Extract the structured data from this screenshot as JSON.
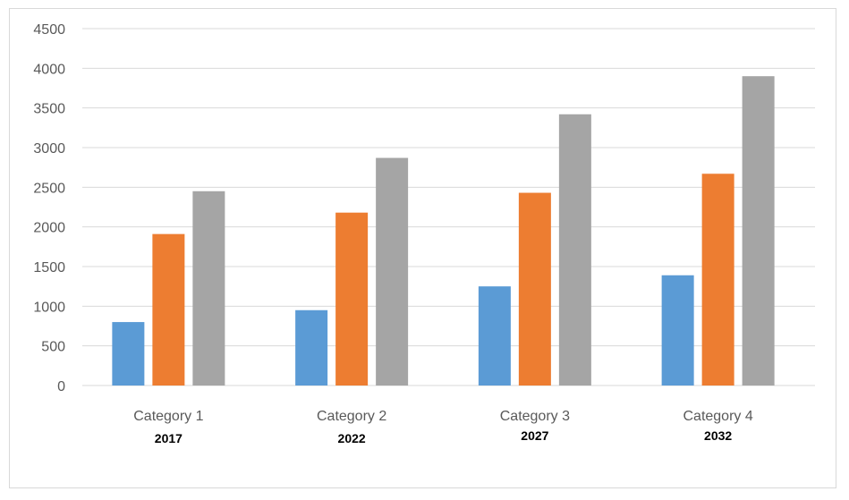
{
  "chart_data": {
    "type": "bar",
    "categories": [
      "Category 1",
      "Category 2",
      "Category 3",
      "Category 4"
    ],
    "sublabels": [
      "2017",
      "2022",
      "2027",
      "2032"
    ],
    "series": [
      {
        "values": [
          800,
          950,
          1250,
          1390
        ],
        "color": "#5b9bd5"
      },
      {
        "values": [
          1910,
          2180,
          2430,
          2670
        ],
        "color": "#ed7d31"
      },
      {
        "values": [
          2450,
          2870,
          3420,
          3900
        ],
        "color": "#a5a5a5"
      }
    ],
    "yticks": [
      "0",
      "500",
      "1000",
      "1500",
      "2000",
      "2500",
      "3000",
      "3500",
      "4000",
      "4500"
    ],
    "ylim": [
      0,
      4500
    ],
    "grid": true,
    "legend": "none",
    "gridline_color": "#d9d9d9"
  }
}
